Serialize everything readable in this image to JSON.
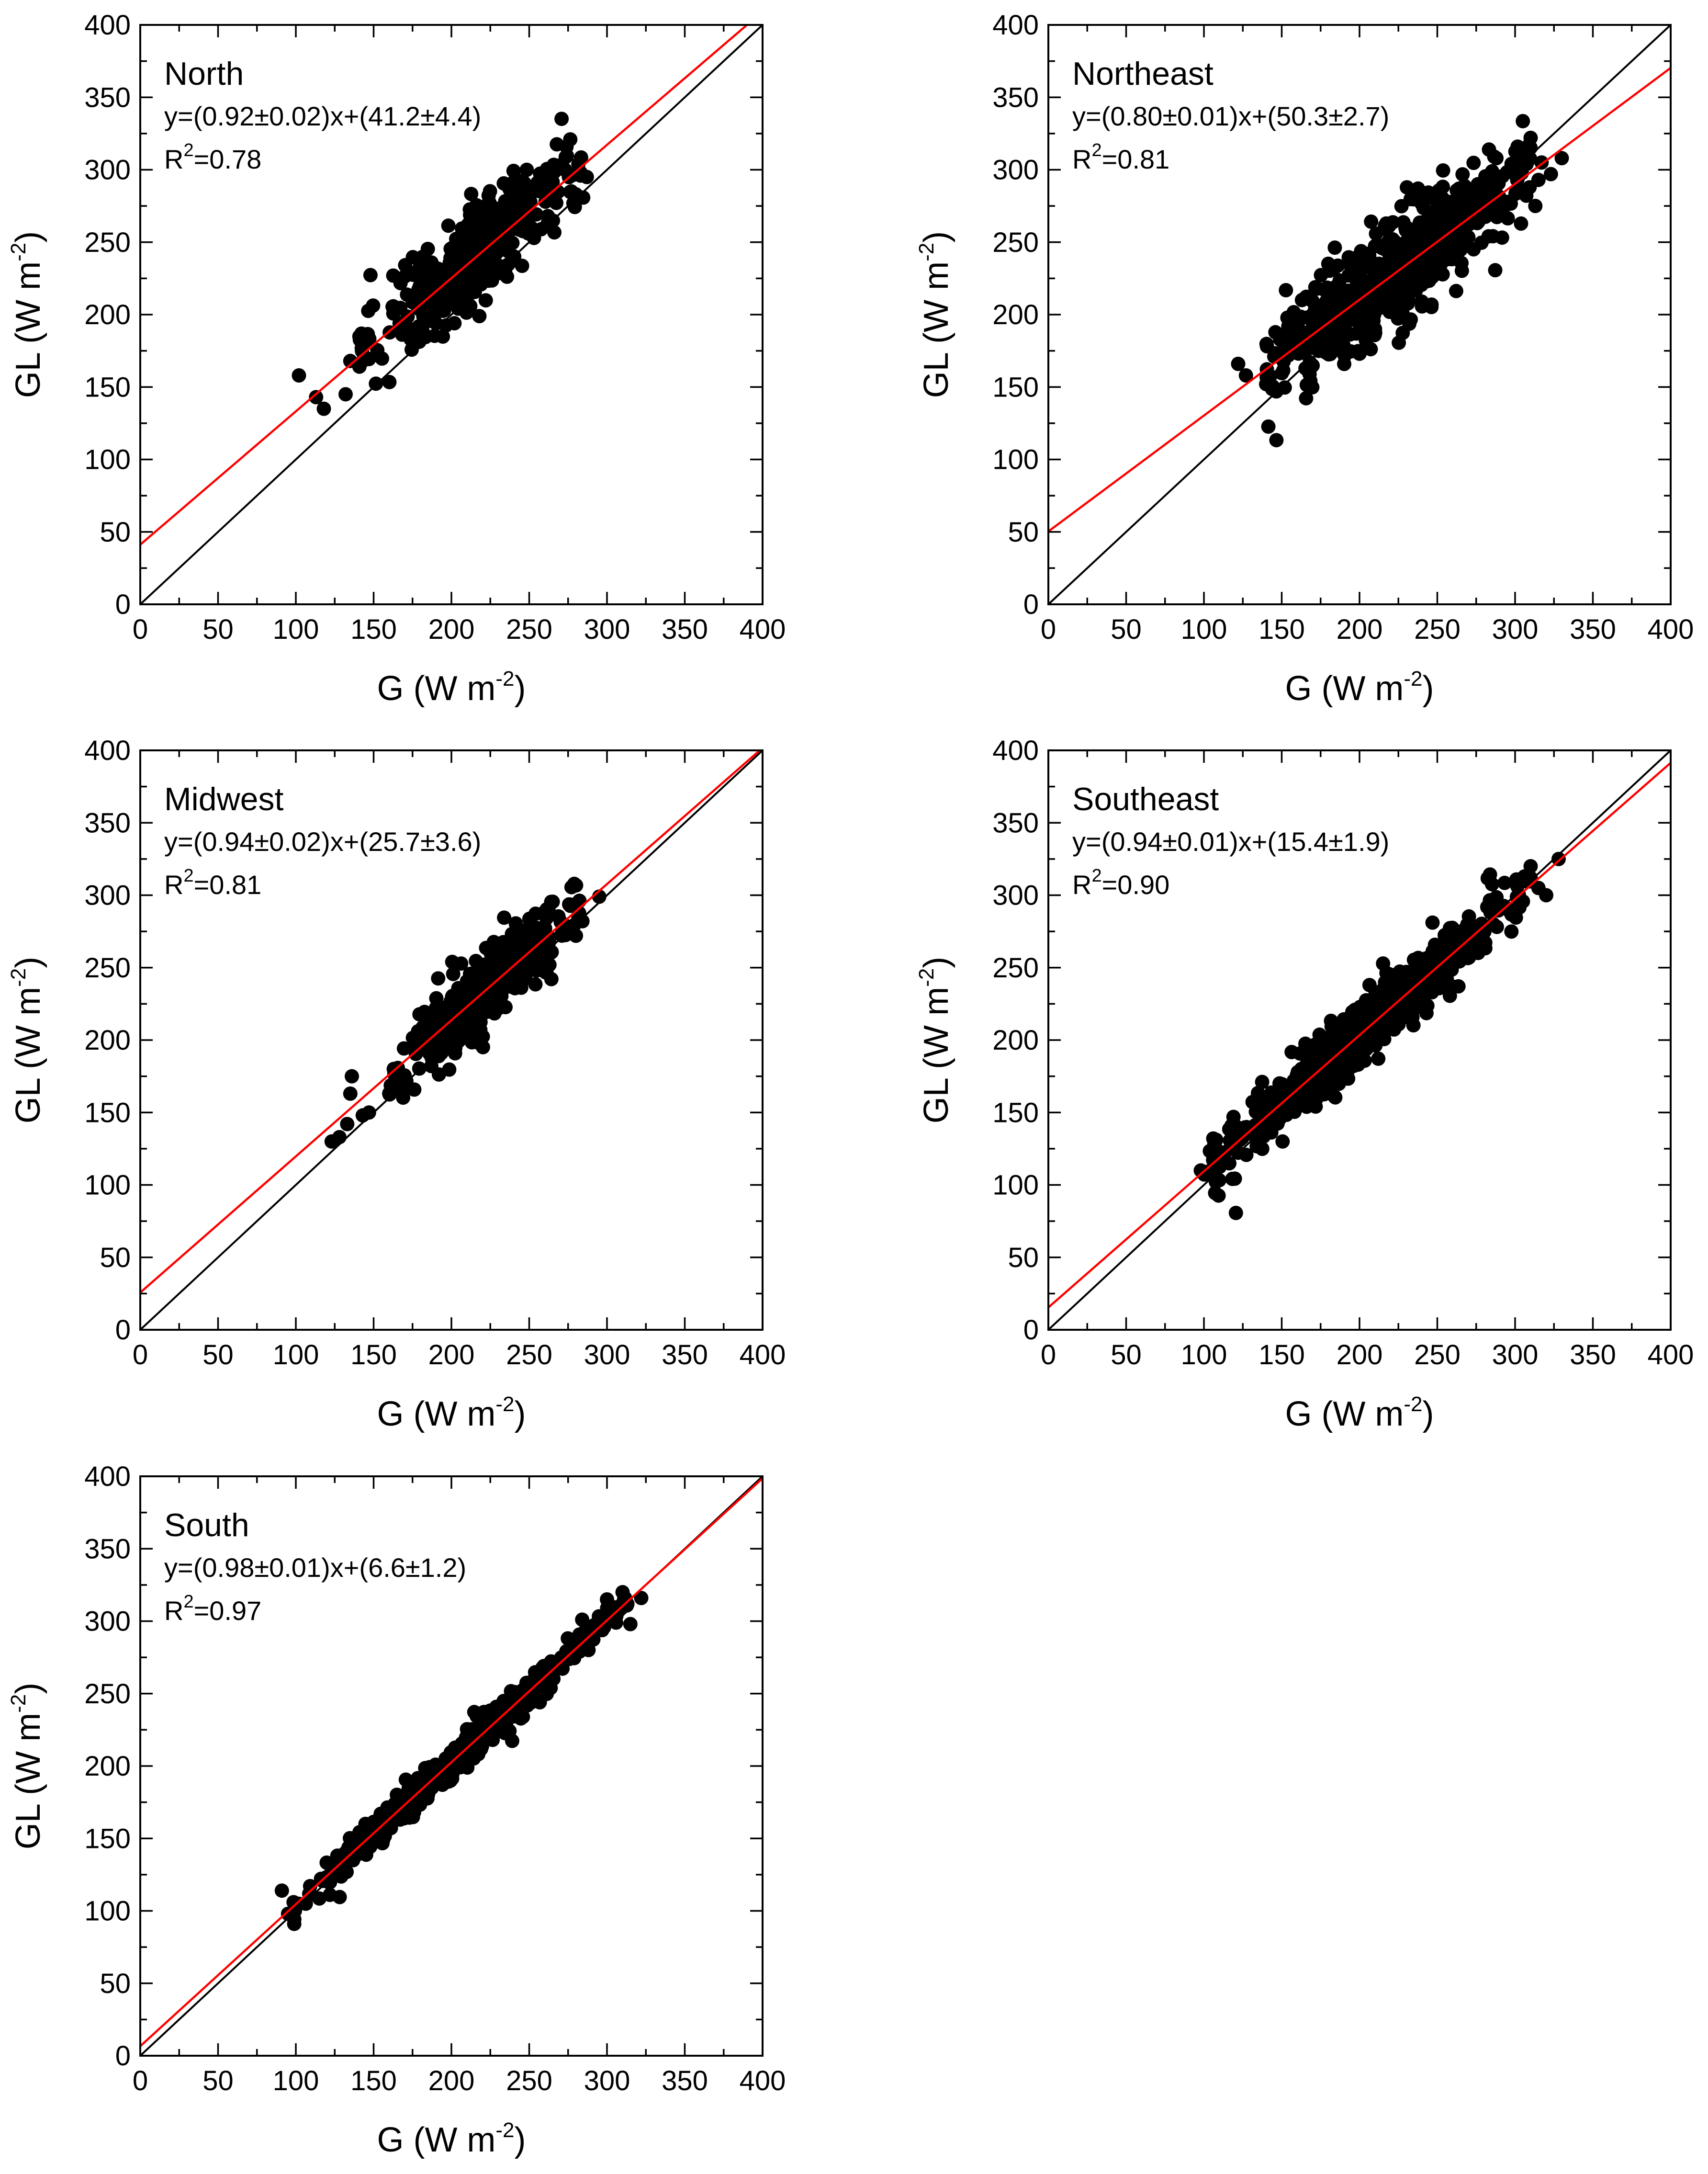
{
  "figure": {
    "colors": {
      "axis": "#000000",
      "points": "#000000",
      "identity_line": "#000000",
      "fit_line": "#ff0000",
      "background": "#ffffff"
    }
  },
  "chart_data": [
    {
      "type": "scatter",
      "region": "North",
      "equation": "y=(0.92±0.02)x+(41.2±4.4)",
      "r2_prefix": "R",
      "r2_sup": "2",
      "r2_value": "=0.78",
      "fit": {
        "slope": 0.92,
        "intercept": 41.2
      },
      "xlabel": {
        "main": "G (W m",
        "sup": "-2",
        "close": ")"
      },
      "ylabel": {
        "main": "GL (W m",
        "sup": "-2",
        "close": ")"
      },
      "xlim": [
        0,
        400
      ],
      "ylim": [
        0,
        400
      ],
      "xticks": [
        0,
        50,
        100,
        150,
        200,
        250,
        300,
        350,
        400
      ],
      "yticks": [
        0,
        50,
        100,
        150,
        200,
        250,
        300,
        350,
        400
      ],
      "cloud": {
        "x_range": [
          140,
          285
        ],
        "scatter_sd": 16,
        "n": 380,
        "seed": 11
      },
      "outliers": [
        [
          102,
          158
        ],
        [
          113,
          143
        ],
        [
          118,
          135
        ],
        [
          132,
          145
        ],
        [
          135,
          168
        ],
        [
          143,
          168
        ],
        [
          280,
          283
        ],
        [
          283,
          298
        ],
        [
          273,
          300
        ],
        [
          267,
          303
        ],
        [
          262,
          268
        ],
        [
          287,
          295
        ]
      ]
    },
    {
      "type": "scatter",
      "region": "Northeast",
      "equation": "y=(0.80±0.01)x+(50.3±2.7)",
      "r2_prefix": "R",
      "r2_sup": "2",
      "r2_value": "=0.81",
      "fit": {
        "slope": 0.8,
        "intercept": 50.3
      },
      "xlabel": {
        "main": "G (W m",
        "sup": "-2",
        "close": ")"
      },
      "ylabel": {
        "main": "GL (W m",
        "sup": "-2",
        "close": ")"
      },
      "xlim": [
        0,
        400
      ],
      "ylim": [
        0,
        400
      ],
      "xticks": [
        0,
        50,
        100,
        150,
        200,
        250,
        300,
        350,
        400
      ],
      "yticks": [
        0,
        50,
        100,
        150,
        200,
        250,
        300,
        350,
        400
      ],
      "cloud": {
        "x_range": [
          140,
          310
        ],
        "scatter_sd": 17,
        "n": 650,
        "seed": 23
      },
      "outliers": [
        [
          122,
          166
        ],
        [
          127,
          158
        ],
        [
          140,
          152
        ],
        [
          200,
          173
        ],
        [
          315,
          293
        ],
        [
          323,
          297
        ],
        [
          330,
          308
        ],
        [
          317,
          305
        ],
        [
          310,
          322
        ],
        [
          313,
          275
        ],
        [
          308,
          314
        ],
        [
          288,
          308
        ]
      ]
    },
    {
      "type": "scatter",
      "region": "Midwest",
      "equation": "y=(0.94±0.02)x+(25.7±3.6)",
      "r2_prefix": "R",
      "r2_sup": "2",
      "r2_value": "=0.81",
      "fit": {
        "slope": 0.94,
        "intercept": 25.7
      },
      "xlabel": {
        "main": "G (W m",
        "sup": "-2",
        "close": ")"
      },
      "ylabel": {
        "main": "GL (W m",
        "sup": "-2",
        "close": ")"
      },
      "xlim": [
        0,
        400
      ],
      "ylim": [
        0,
        400
      ],
      "xticks": [
        0,
        50,
        100,
        150,
        200,
        250,
        300,
        350,
        400
      ],
      "yticks": [
        0,
        50,
        100,
        150,
        200,
        250,
        300,
        350,
        400
      ],
      "cloud": {
        "x_range": [
          160,
          285
        ],
        "scatter_sd": 13,
        "n": 420,
        "seed": 37
      },
      "outliers": [
        [
          123,
          130
        ],
        [
          128,
          133
        ],
        [
          133,
          142
        ],
        [
          135,
          163
        ],
        [
          136,
          175
        ],
        [
          143,
          148
        ],
        [
          147,
          150
        ],
        [
          295,
          299
        ],
        [
          280,
          294
        ],
        [
          272,
          280
        ]
      ]
    },
    {
      "type": "scatter",
      "region": "Southeast",
      "equation": "y=(0.94±0.01)x+(15.4±1.9)",
      "r2_prefix": "R",
      "r2_sup": "2",
      "r2_value": "=0.90",
      "fit": {
        "slope": 0.94,
        "intercept": 15.4
      },
      "xlabel": {
        "main": "G (W m",
        "sup": "-2",
        "close": ")"
      },
      "ylabel": {
        "main": "GL (W m",
        "sup": "-2",
        "close": ")"
      },
      "xlim": [
        0,
        400
      ],
      "ylim": [
        0,
        400
      ],
      "xticks": [
        0,
        50,
        100,
        150,
        200,
        250,
        300,
        350,
        400
      ],
      "yticks": [
        0,
        50,
        100,
        150,
        200,
        250,
        300,
        350,
        400
      ],
      "cloud": {
        "x_range": [
          100,
          310
        ],
        "scatter_sd": 11,
        "n": 620,
        "seed": 51
      },
      "outliers": [
        [
          98,
          110
        ],
        [
          103,
          107
        ],
        [
          107,
          113
        ],
        [
          310,
          320
        ],
        [
          315,
          305
        ],
        [
          320,
          300
        ],
        [
          328,
          325
        ],
        [
          310,
          312
        ]
      ]
    },
    {
      "type": "scatter",
      "region": "South",
      "equation": "y=(0.98±0.01)x+(6.6±1.2)",
      "r2_prefix": "R",
      "r2_sup": "2",
      "r2_value": "=0.97",
      "fit": {
        "slope": 0.98,
        "intercept": 6.6
      },
      "xlabel": {
        "main": "G (W m",
        "sup": "-2",
        "close": ")"
      },
      "ylabel": {
        "main": "GL (W m",
        "sup": "-2",
        "close": ")"
      },
      "xlim": [
        0,
        400
      ],
      "ylim": [
        0,
        400
      ],
      "xticks": [
        0,
        50,
        100,
        150,
        200,
        250,
        300,
        350,
        400
      ],
      "yticks": [
        0,
        50,
        100,
        150,
        200,
        250,
        300,
        350,
        400
      ],
      "cloud": {
        "x_range": [
          95,
          315
        ],
        "scatter_sd": 6,
        "n": 520,
        "seed": 73
      },
      "outliers": [
        [
          91,
          114
        ],
        [
          95,
          98
        ],
        [
          310,
          320
        ],
        [
          315,
          298
        ],
        [
          322,
          316
        ],
        [
          300,
          315
        ]
      ]
    }
  ]
}
